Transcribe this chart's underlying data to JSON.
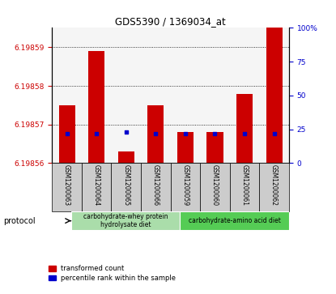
{
  "title": "GDS5390 / 1369034_at",
  "samples": [
    "GSM1200063",
    "GSM1200064",
    "GSM1200065",
    "GSM1200066",
    "GSM1200059",
    "GSM1200060",
    "GSM1200061",
    "GSM1200062"
  ],
  "transformed_count": [
    6.198575,
    6.198589,
    6.198563,
    6.198575,
    6.198568,
    6.198568,
    6.198578,
    6.198595
  ],
  "percentile_rank": [
    22,
    22,
    23,
    22,
    22,
    22,
    22,
    22
  ],
  "ylim_left": [
    6.19856,
    6.198595
  ],
  "ylim_right": [
    0,
    100
  ],
  "yticks_left": [
    6.19856,
    6.19857,
    6.19858,
    6.19859
  ],
  "yticks_right": [
    0,
    25,
    50,
    75,
    100
  ],
  "bar_color": "#cc0000",
  "percentile_color": "#0000cc",
  "protocol_groups": [
    {
      "label": "carbohydrate-whey protein\nhydrolysate diet",
      "start": 0,
      "end": 3,
      "color": "#aaddaa"
    },
    {
      "label": "carbohydrate-amino acid diet",
      "start": 4,
      "end": 7,
      "color": "#55cc55"
    }
  ],
  "protocol_label": "protocol",
  "legend_items": [
    {
      "label": "transformed count",
      "color": "#cc0000"
    },
    {
      "label": "percentile rank within the sample",
      "color": "#0000cc"
    }
  ],
  "tick_label_color_left": "#cc0000",
  "tick_label_color_right": "#0000cc",
  "bg_plot": "#f5f5f5",
  "bg_xticklabel": "#cccccc"
}
